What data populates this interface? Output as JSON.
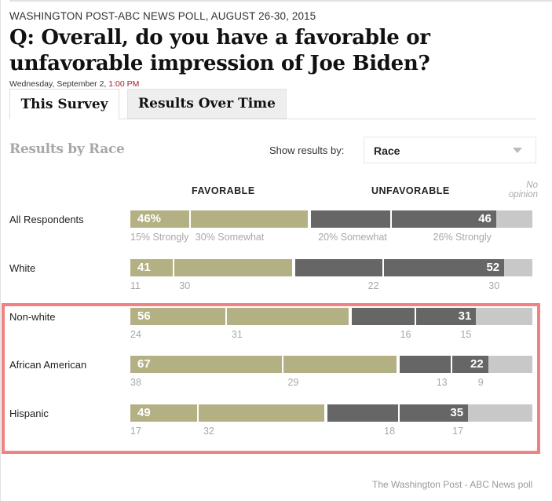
{
  "header": {
    "kicker": "WASHINGTON POST-ABC NEWS POLL, AUGUST 26-30, 2015",
    "headline": "Q: Overall, do you have a favorable or unfavorable impression of Joe Biden?",
    "date": "Wednesday, September 2,",
    "time": "1:00 PM"
  },
  "tabs": [
    {
      "label": "This Survey",
      "active": true
    },
    {
      "label": "Results Over Time",
      "active": false
    }
  ],
  "section": {
    "title": "Results by Race",
    "show_label": "Show results by:",
    "select_value": "Race"
  },
  "columns": {
    "favorable": "FAVORABLE",
    "unfavorable": "UNFAVORABLE",
    "no_opinion": "No opinion"
  },
  "colors": {
    "favorable": "#b3b184",
    "unfavorable": "#666666",
    "no_opinion": "#c8c8c8",
    "highlight": "#f28282"
  },
  "credit": "The Washington Post - ABC News poll",
  "chart_data": {
    "type": "bar",
    "orientation": "horizontal-stacked",
    "title": "Results by Race",
    "categories": [
      "All Respondents",
      "White",
      "Non-white",
      "African American",
      "Hispanic"
    ],
    "series": [
      {
        "name": "Strongly favorable",
        "values": [
          15,
          11,
          24,
          38,
          17
        ]
      },
      {
        "name": "Somewhat favorable",
        "values": [
          30,
          30,
          31,
          29,
          32
        ]
      },
      {
        "name": "Somewhat unfavorable",
        "values": [
          20,
          22,
          16,
          13,
          18
        ]
      },
      {
        "name": "Strongly unfavorable",
        "values": [
          26,
          30,
          15,
          9,
          17
        ]
      },
      {
        "name": "No opinion",
        "values": [
          9,
          7,
          14,
          11,
          16
        ]
      }
    ],
    "favorable_totals": [
      "46%",
      "41",
      "56",
      "67",
      "49"
    ],
    "unfavorable_totals": [
      "46",
      "52",
      "31",
      "22",
      "35"
    ],
    "sub_labels": [
      [
        "15% Strongly",
        "30% Somewhat",
        "20% Somewhat",
        "26% Strongly"
      ],
      [
        "11",
        "30",
        "22",
        "30"
      ],
      [
        "24",
        "31",
        "16",
        "15"
      ],
      [
        "38",
        "29",
        "13",
        "9"
      ],
      [
        "17",
        "32",
        "18",
        "17"
      ]
    ],
    "highlighted_categories": [
      "Non-white",
      "African American",
      "Hispanic"
    ],
    "xlim": [
      0,
      100
    ]
  }
}
